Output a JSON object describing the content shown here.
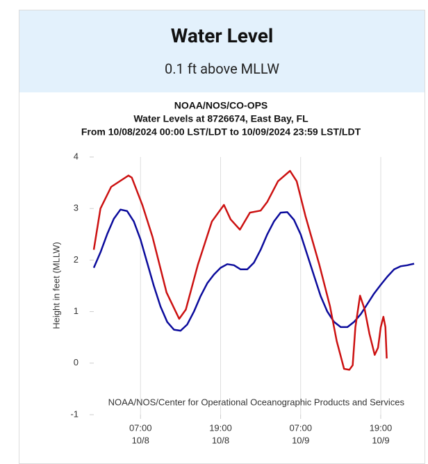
{
  "header": {
    "title": "Water Level",
    "subtitle": "0.1 ft above MLLW"
  },
  "chart_data": {
    "type": "line",
    "title_lines": [
      "NOAA/NOS/CO-OPS",
      "Water Levels at 8726674, East Bay, FL",
      "From 10/08/2024 00:00 LST/LDT to 10/09/2024 23:59 LST/LDT"
    ],
    "ylabel": "Height in feet (MLLW)",
    "credit": "NOAA/NOS/Center for Operational Oceanographic Products and Services",
    "xlim": [
      0,
      48
    ],
    "ylim": [
      -1,
      4
    ],
    "xticks": [
      {
        "value": 7,
        "label": "07:00",
        "date": "10/8"
      },
      {
        "value": 19,
        "label": "19:00",
        "date": "10/8"
      },
      {
        "value": 31,
        "label": "07:00",
        "date": "10/9"
      },
      {
        "value": 43,
        "label": "19:00",
        "date": "10/9"
      }
    ],
    "yticks": [
      -1,
      0,
      1,
      2,
      3,
      4
    ],
    "grid": "x",
    "series": [
      {
        "color": "#0b0b9c",
        "x": [
          0,
          1,
          2,
          3,
          4,
          5,
          6,
          7,
          8,
          9,
          10,
          11,
          12,
          13,
          14,
          15,
          16,
          17,
          18,
          19,
          20,
          21,
          22,
          23,
          24,
          25,
          26,
          27,
          28,
          29,
          30,
          31,
          32,
          33,
          34,
          35,
          36,
          37,
          38,
          39,
          40,
          41,
          42,
          43,
          44,
          45,
          46,
          47,
          48
        ],
        "values": [
          1.85,
          2.15,
          2.5,
          2.8,
          2.98,
          2.95,
          2.75,
          2.4,
          1.95,
          1.5,
          1.1,
          0.8,
          0.65,
          0.63,
          0.75,
          1.0,
          1.3,
          1.55,
          1.72,
          1.85,
          1.92,
          1.9,
          1.82,
          1.82,
          1.95,
          2.2,
          2.5,
          2.75,
          2.92,
          2.93,
          2.78,
          2.5,
          2.1,
          1.7,
          1.3,
          1.0,
          0.8,
          0.7,
          0.7,
          0.8,
          0.95,
          1.15,
          1.35,
          1.52,
          1.68,
          1.82,
          1.88,
          1.9,
          1.93
        ]
      },
      {
        "color": "#cc1111",
        "x": [
          0,
          1,
          2.6,
          5.2,
          5.7,
          7.3,
          8.8,
          10.9,
          12.8,
          13.8,
          15.6,
          17.7,
          19.5,
          20.5,
          21.9,
          23.4,
          25,
          26,
          27.6,
          29.4,
          30.4,
          31.7,
          33.8,
          35.4,
          36.4,
          37.5,
          38.3,
          38.8,
          39.2,
          39.9,
          40.6,
          41.3,
          42.1,
          42.6,
          43,
          43.4,
          43.7,
          43.9
        ],
        "values": [
          2.2,
          3.0,
          3.42,
          3.64,
          3.6,
          3.06,
          2.45,
          1.37,
          0.86,
          1.04,
          1.91,
          2.75,
          3.07,
          2.79,
          2.59,
          2.92,
          2.96,
          3.13,
          3.53,
          3.73,
          3.53,
          2.86,
          1.91,
          1.1,
          0.43,
          -0.11,
          -0.13,
          -0.04,
          0.7,
          1.31,
          1.04,
          0.57,
          0.16,
          0.3,
          0.7,
          0.9,
          0.7,
          0.09
        ]
      }
    ]
  }
}
